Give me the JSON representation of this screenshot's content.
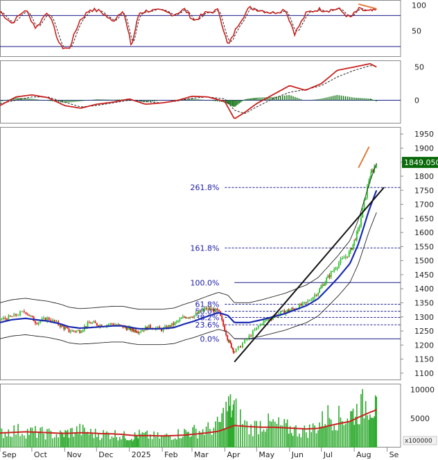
{
  "chart_data": [
    {
      "type": "line",
      "panel": "stochastic",
      "y_ticks": [
        "100",
        "50"
      ],
      "ylim": [
        0,
        110
      ],
      "reference_levels": [
        80,
        20
      ],
      "x": [
        "2024-09-01",
        "2024-09-12",
        "2024-09-25",
        "2024-10-05",
        "2024-10-16",
        "2024-10-28",
        "2024-11-05",
        "2024-11-15",
        "2024-11-25",
        "2024-12-05",
        "2024-12-16",
        "2024-12-26",
        "2025-01-03",
        "2025-01-10",
        "2025-01-20",
        "2025-02-01",
        "2025-02-12",
        "2025-02-22",
        "2025-03-03",
        "2025-03-14",
        "2025-03-26",
        "2025-04-04",
        "2025-04-14",
        "2025-04-24",
        "2025-05-06",
        "2025-05-16",
        "2025-05-28",
        "2025-06-06",
        "2025-06-17",
        "2025-06-28",
        "2025-07-07",
        "2025-07-17",
        "2025-07-28",
        "2025-08-05",
        "2025-08-15",
        "2025-08-22"
      ],
      "values": [
        88,
        65,
        92,
        55,
        90,
        20,
        15,
        70,
        92,
        88,
        68,
        92,
        20,
        85,
        90,
        88,
        82,
        92,
        70,
        85,
        90,
        20,
        65,
        95,
        90,
        85,
        92,
        45,
        85,
        92,
        90,
        93,
        75,
        92,
        88,
        90
      ],
      "grid": false
    },
    {
      "type": "area",
      "panel": "macd",
      "y_ticks": [
        "50",
        "0"
      ],
      "ylim": [
        -35,
        60
      ],
      "x": [
        "2024-09-01",
        "2024-09-16",
        "2024-10-01",
        "2024-10-16",
        "2024-11-01",
        "2024-11-16",
        "2024-12-01",
        "2024-12-16",
        "2025-01-01",
        "2025-01-16",
        "2025-02-01",
        "2025-02-16",
        "2025-03-01",
        "2025-03-16",
        "2025-04-01",
        "2025-04-10",
        "2025-04-20",
        "2025-05-01",
        "2025-05-16",
        "2025-06-01",
        "2025-06-16",
        "2025-07-01",
        "2025-07-16",
        "2025-08-01",
        "2025-08-16",
        "2025-08-22"
      ],
      "macd": [
        -8,
        5,
        8,
        4,
        -8,
        -12,
        -6,
        -3,
        2,
        -6,
        -4,
        0,
        6,
        5,
        -2,
        -28,
        -18,
        -5,
        8,
        22,
        15,
        25,
        45,
        50,
        55,
        50
      ],
      "signal": [
        -5,
        0,
        5,
        5,
        -3,
        -10,
        -8,
        -4,
        0,
        -2,
        -4,
        -1,
        3,
        5,
        2,
        -15,
        -20,
        -10,
        2,
        12,
        16,
        22,
        35,
        45,
        52,
        52
      ],
      "grid": false
    },
    {
      "type": "line",
      "panel": "price",
      "y_ticks": [
        "1950",
        "1900",
        "1850",
        "1800",
        "1750",
        "1700",
        "1650",
        "1600",
        "1550",
        "1500",
        "1450",
        "1400",
        "1350",
        "1300",
        "1250",
        "1200",
        "1150",
        "1100"
      ],
      "ylim": [
        1075,
        1975
      ],
      "last_price": "1849.050",
      "x_ticks": [
        "Sep",
        "Oct",
        "Nov",
        "Dec",
        "2025",
        "Feb",
        "Mar",
        "Apr",
        "May",
        "Jun",
        "Jul",
        "Aug",
        "Se"
      ],
      "x": [
        "2024-09-01",
        "2024-09-12",
        "2024-09-25",
        "2024-10-05",
        "2024-10-16",
        "2024-10-28",
        "2024-11-05",
        "2024-11-15",
        "2024-11-25",
        "2024-12-05",
        "2024-12-16",
        "2024-12-26",
        "2025-01-03",
        "2025-01-10",
        "2025-01-20",
        "2025-02-01",
        "2025-02-12",
        "2025-02-22",
        "2025-03-03",
        "2025-03-14",
        "2025-03-26",
        "2025-04-04",
        "2025-04-10",
        "2025-04-24",
        "2025-05-06",
        "2025-05-16",
        "2025-05-28",
        "2025-06-06",
        "2025-06-17",
        "2025-06-28",
        "2025-07-07",
        "2025-07-17",
        "2025-07-28",
        "2025-08-05",
        "2025-08-15",
        "2025-08-22"
      ],
      "close": [
        1290,
        1300,
        1320,
        1280,
        1295,
        1270,
        1250,
        1250,
        1280,
        1270,
        1275,
        1265,
        1255,
        1250,
        1265,
        1255,
        1275,
        1300,
        1305,
        1330,
        1320,
        1220,
        1175,
        1230,
        1280,
        1300,
        1320,
        1330,
        1350,
        1390,
        1440,
        1490,
        1530,
        1610,
        1790,
        1849
      ],
      "ma": [
        1280,
        1290,
        1295,
        1290,
        1285,
        1275,
        1265,
        1260,
        1262,
        1265,
        1268,
        1268,
        1262,
        1258,
        1258,
        1258,
        1262,
        1275,
        1285,
        1300,
        1315,
        1305,
        1280,
        1280,
        1290,
        1300,
        1312,
        1325,
        1340,
        1365,
        1400,
        1440,
        1490,
        1560,
        1680,
        1750
      ],
      "fibonacci": [
        {
          "label": "261.8%",
          "value": 1760
        },
        {
          "label": "161.8%",
          "value": 1545
        },
        {
          "label": "100.0%",
          "value": 1422
        },
        {
          "label": "61.8%",
          "value": 1345
        },
        {
          "label": "50.0%",
          "value": 1320
        },
        {
          "label": "38.2%",
          "value": 1298
        },
        {
          "label": "23.6%",
          "value": 1272
        },
        {
          "label": "0.0%",
          "value": 1222
        }
      ],
      "grid": false
    },
    {
      "type": "bar",
      "panel": "volume",
      "y_ticks": [
        "10000",
        "5000"
      ],
      "ylim": [
        0,
        11000
      ],
      "unit": "x100000",
      "x": [
        "2024-09-01",
        "2024-09-12",
        "2024-09-25",
        "2024-10-05",
        "2024-10-16",
        "2024-10-28",
        "2024-11-05",
        "2024-11-15",
        "2024-11-25",
        "2024-12-05",
        "2024-12-16",
        "2024-12-26",
        "2025-01-03",
        "2025-01-10",
        "2025-01-20",
        "2025-02-01",
        "2025-02-12",
        "2025-02-22",
        "2025-03-03",
        "2025-03-14",
        "2025-03-26",
        "2025-04-04",
        "2025-04-10",
        "2025-04-24",
        "2025-05-06",
        "2025-05-16",
        "2025-05-28",
        "2025-06-06",
        "2025-06-17",
        "2025-06-28",
        "2025-07-07",
        "2025-07-17",
        "2025-07-28",
        "2025-08-05",
        "2025-08-15",
        "2025-08-22"
      ],
      "values": [
        2500,
        3000,
        2800,
        2600,
        2400,
        2200,
        2600,
        3000,
        2500,
        2300,
        2400,
        2000,
        1800,
        2200,
        2000,
        1800,
        2200,
        2600,
        2800,
        3000,
        3800,
        7000,
        6500,
        3200,
        4200,
        4000,
        3500,
        3000,
        2800,
        3800,
        5500,
        5000,
        5500,
        6500,
        8000,
        6200
      ],
      "ma_values": [
        2500,
        2600,
        2700,
        2650,
        2550,
        2450,
        2450,
        2550,
        2500,
        2400,
        2350,
        2250,
        2100,
        2050,
        2050,
        2000,
        2050,
        2150,
        2300,
        2500,
        2800,
        3400,
        3800,
        3600,
        3500,
        3500,
        3400,
        3300,
        3200,
        3300,
        3700,
        4100,
        4500,
        5200,
        6000,
        6500
      ],
      "grid": false
    }
  ]
}
